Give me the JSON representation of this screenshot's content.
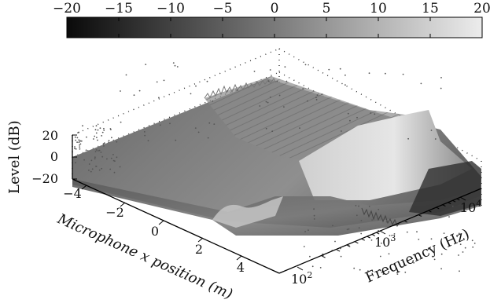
{
  "chart_data": {
    "type": "surface3d",
    "colorbar": {
      "min": -20,
      "max": 20,
      "ticks": [
        "−20",
        "−15",
        "−10",
        "−5",
        "0",
        "5",
        "10",
        "15",
        "20"
      ],
      "colormap": [
        "#0a0a0a",
        "#e8e8e8"
      ]
    },
    "z_axis": {
      "label": "Level (dB)",
      "ticks": [
        "20",
        "0",
        "−20"
      ],
      "range": [
        -20,
        20
      ]
    },
    "x_axis": {
      "label": "Microphone x position (m)",
      "ticks": [
        "−4",
        "−2",
        "0",
        "2",
        "4"
      ],
      "range": [
        -4.5,
        4.5
      ]
    },
    "freq_axis": {
      "label": "Frequency (Hz)",
      "scale": "log",
      "ticks": [
        {
          "base": "10",
          "exp": "2"
        },
        {
          "base": "10",
          "exp": "3"
        },
        {
          "base": "10",
          "exp": "4"
        }
      ],
      "range": [
        50,
        20000
      ]
    },
    "grid": "dotted box",
    "surface_description_visible": false
  },
  "colors": {
    "surface_dark": "#3c3c3c",
    "surface_mid": "#8a8a8a",
    "surface_light": "#d8d8d8"
  }
}
